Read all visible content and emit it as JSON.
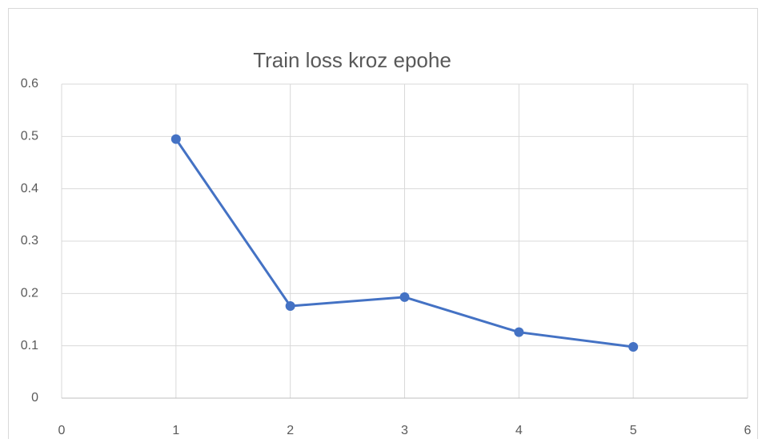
{
  "chart_data": {
    "type": "line",
    "title": "Train loss kroz epohe",
    "x": [
      1,
      2,
      3,
      4,
      5
    ],
    "series": [
      {
        "name": "Train loss",
        "color": "#4472c4",
        "values": [
          0.495,
          0.176,
          0.193,
          0.126,
          0.098
        ]
      }
    ],
    "xlim": [
      0,
      6
    ],
    "xticks": [
      0,
      1,
      2,
      3,
      4,
      5,
      6
    ],
    "ylim": [
      0,
      0.6
    ],
    "yticks": [
      0,
      0.1,
      0.2,
      0.3,
      0.4,
      0.5,
      0.6
    ],
    "grid": true,
    "markers": true
  }
}
